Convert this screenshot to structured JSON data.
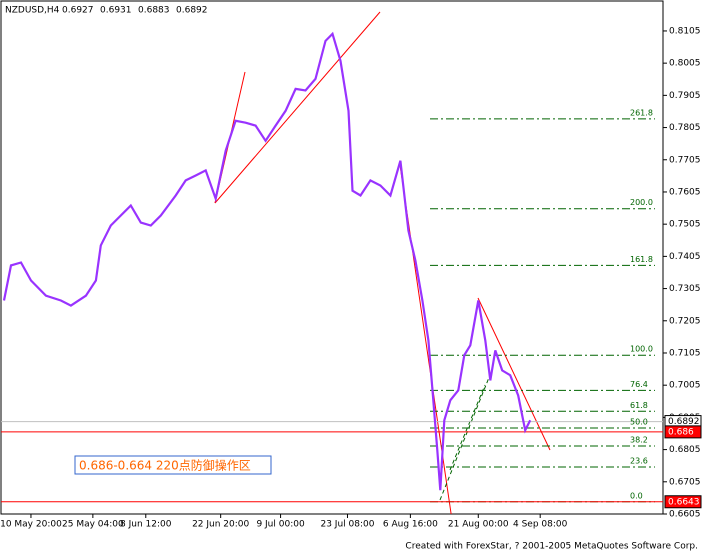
{
  "chart_data": {
    "type": "line",
    "title": "NZDUSD,H4",
    "ohlc": [
      0.6927,
      0.6931,
      0.6883,
      0.6892
    ],
    "xlim": [
      0,
      663
    ],
    "ylim": [
      0.6605,
      0.8198
    ],
    "yticks": [
      0.6605,
      0.6705,
      0.6805,
      0.6905,
      0.7005,
      0.7105,
      0.7205,
      0.7305,
      0.7405,
      0.7505,
      0.7605,
      0.7705,
      0.7805,
      0.7905,
      0.8005,
      0.8105
    ],
    "xticks": [
      {
        "value": 30,
        "label": "10 May 20:00"
      },
      {
        "value": 92,
        "label": "25 May 04:00"
      },
      {
        "value": 145,
        "label": "8 Jun 12:00"
      },
      {
        "value": 220,
        "label": "22 Jun 20:00"
      },
      {
        "value": 280,
        "label": "9 Jul 00:00"
      },
      {
        "value": 347,
        "label": "23 Jul 08:00"
      },
      {
        "value": 410,
        "label": "6 Aug 16:00"
      },
      {
        "value": 478,
        "label": "21 Aug 00:00"
      },
      {
        "value": 540,
        "label": "4 Sep 08:00"
      }
    ],
    "series": [
      {
        "name": "NZDUSD",
        "color": "#9933ff",
        "x": [
          3,
          10,
          20,
          30,
          45,
          60,
          70,
          85,
          95,
          100,
          110,
          120,
          130,
          140,
          150,
          160,
          175,
          185,
          195,
          205,
          215,
          225,
          235,
          245,
          255,
          265,
          275,
          285,
          295,
          305,
          315,
          325,
          332,
          340,
          348,
          352,
          360,
          370,
          380,
          390,
          400,
          408,
          415,
          422,
          428,
          433,
          437,
          440,
          444,
          450,
          458,
          464,
          470,
          478,
          485,
          490,
          495,
          502,
          510,
          518,
          525,
          530
        ],
        "values": [
          0.7268,
          0.7377,
          0.7386,
          0.733,
          0.7283,
          0.7268,
          0.7252,
          0.7283,
          0.733,
          0.7439,
          0.7501,
          0.7532,
          0.7563,
          0.751,
          0.7501,
          0.7532,
          0.7594,
          0.7641,
          0.7656,
          0.7672,
          0.7584,
          0.7733,
          0.7826,
          0.782,
          0.7811,
          0.7764,
          0.7811,
          0.7857,
          0.7925,
          0.792,
          0.7956,
          0.8074,
          0.8096,
          0.8012,
          0.7857,
          0.7609,
          0.7594,
          0.7641,
          0.7625,
          0.7594,
          0.7702,
          0.7485,
          0.7392,
          0.7268,
          0.7144,
          0.6958,
          0.6803,
          0.6679,
          0.6896,
          0.6958,
          0.6989,
          0.7098,
          0.7129,
          0.7268,
          0.7144,
          0.702,
          0.7113,
          0.7051,
          0.7036,
          0.6973,
          0.6865,
          0.6896
        ]
      }
    ],
    "fib_levels": [
      {
        "label": "261.8",
        "price": 0.7832
      },
      {
        "label": "200.0",
        "price": 0.7553
      },
      {
        "label": "161.8",
        "price": 0.7377
      },
      {
        "label": "100.0",
        "price": 0.7098
      },
      {
        "label": "76.4",
        "price": 0.6989
      },
      {
        "label": "61.8",
        "price": 0.6924
      },
      {
        "label": "50.0",
        "price": 0.6872
      },
      {
        "label": "38.2",
        "price": 0.6816
      },
      {
        "label": "23.6",
        "price": 0.6751
      },
      {
        "label": "0.0",
        "price": 0.6643
      }
    ],
    "fib_color": "#006400",
    "price_markers": [
      {
        "value": 0.6892,
        "color": "#ffffff",
        "line": "#c0c0c0"
      },
      {
        "value": 0.686,
        "color": "#ff0000",
        "line": "#ff0000"
      },
      {
        "value": 0.6643,
        "color": "#ff0000",
        "line": "#ff0000"
      }
    ],
    "annotation": "0.686-0.664 220点防御操作区",
    "credit": "Created with ForexStar, ? 2001-2005 MetaQuotes Software Corp."
  }
}
